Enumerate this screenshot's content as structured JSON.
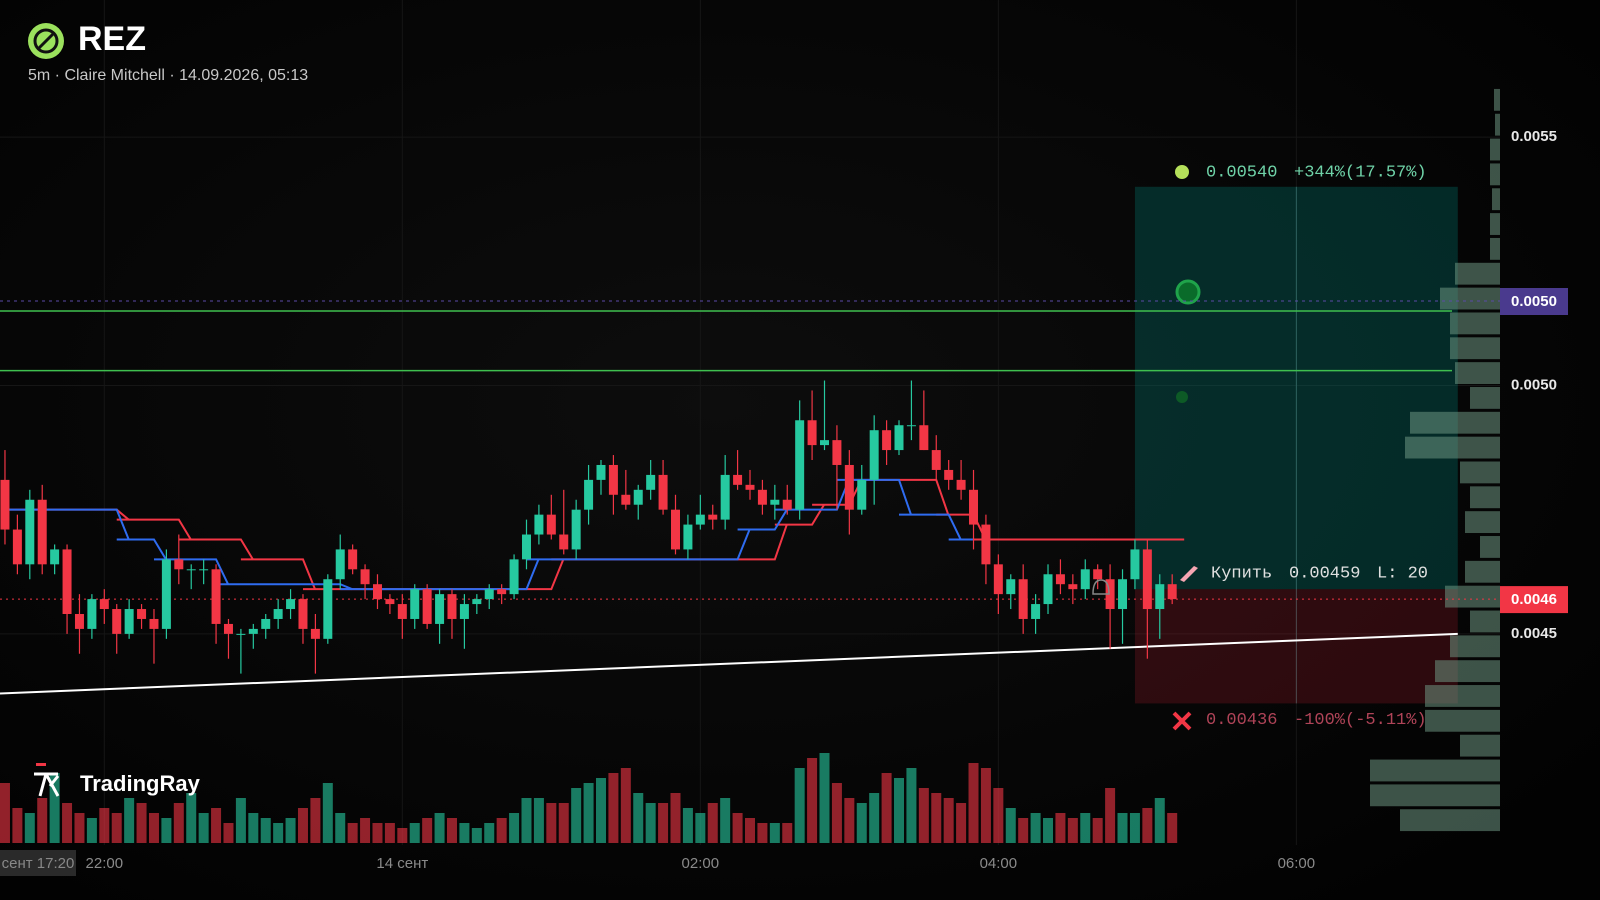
{
  "chart_data": {
    "type": "candlestick",
    "title": "REZ",
    "subtitle": "5m · Claire Mitchell · 14.09.2026, 05:13",
    "watermark": "TradingRay",
    "cursor_time_label": "сент 17:20",
    "up_color": "#26c9a0",
    "down_color": "#f23645",
    "grid": true,
    "xlim": [
      "21:18",
      "07:22"
    ],
    "ylim": [
      0.004075,
      0.005776
    ],
    "xticks": [
      {
        "value": "22:00",
        "label": "22:00"
      },
      {
        "value": "00:00",
        "label": "14 сент"
      },
      {
        "value": "02:00",
        "label": "02:00"
      },
      {
        "value": "04:00",
        "label": "04:00"
      },
      {
        "value": "06:00",
        "label": "06:00"
      }
    ],
    "yticks": [
      {
        "value": 0.0055,
        "label": "0.0055"
      },
      {
        "value": 0.005,
        "label": "0.0050"
      },
      {
        "value": 0.0045,
        "label": "0.0045"
      }
    ],
    "alert_label": "0.0050",
    "last_price": {
      "value": 0.00457,
      "label": "0.0046"
    },
    "x": [
      "21:20",
      "21:25",
      "21:30",
      "21:35",
      "21:40",
      "21:45",
      "21:50",
      "21:55",
      "22:00",
      "22:05",
      "22:10",
      "22:15",
      "22:20",
      "22:25",
      "22:30",
      "22:35",
      "22:40",
      "22:45",
      "22:50",
      "22:55",
      "23:00",
      "23:05",
      "23:10",
      "23:15",
      "23:20",
      "23:25",
      "23:30",
      "23:35",
      "23:40",
      "23:45",
      "23:50",
      "23:55",
      "00:00",
      "00:05",
      "00:10",
      "00:15",
      "00:20",
      "00:25",
      "00:30",
      "00:35",
      "00:40",
      "00:45",
      "00:50",
      "00:55",
      "01:00",
      "01:05",
      "01:10",
      "01:15",
      "01:20",
      "01:25",
      "01:30",
      "01:35",
      "01:40",
      "01:45",
      "01:50",
      "01:55",
      "02:00",
      "02:05",
      "02:10",
      "02:15",
      "02:20",
      "02:25",
      "02:30",
      "02:35",
      "02:40",
      "02:45",
      "02:50",
      "02:55",
      "03:00",
      "03:05",
      "03:10",
      "03:15",
      "03:20",
      "03:25",
      "03:30",
      "03:35",
      "03:40",
      "03:45",
      "03:50",
      "03:55",
      "04:00",
      "04:05",
      "04:10",
      "04:15",
      "04:20",
      "04:25",
      "04:30",
      "04:35",
      "04:40",
      "04:45",
      "04:50",
      "04:55",
      "05:00",
      "05:05",
      "05:10"
    ],
    "ohlc": [
      [
        0.00481,
        0.00487,
        0.00468,
        0.00471
      ],
      [
        0.00471,
        0.00474,
        0.00462,
        0.00464
      ],
      [
        0.00464,
        0.00479,
        0.00461,
        0.00477
      ],
      [
        0.00477,
        0.0048,
        0.00462,
        0.00464
      ],
      [
        0.00464,
        0.00468,
        0.00462,
        0.00467
      ],
      [
        0.00467,
        0.00468,
        0.0045,
        0.00454
      ],
      [
        0.00454,
        0.00458,
        0.00446,
        0.00451
      ],
      [
        0.00451,
        0.00458,
        0.00449,
        0.00457
      ],
      [
        0.00457,
        0.00459,
        0.00452,
        0.00455
      ],
      [
        0.00455,
        0.00456,
        0.00446,
        0.0045
      ],
      [
        0.0045,
        0.00457,
        0.00449,
        0.00455
      ],
      [
        0.00455,
        0.00456,
        0.00451,
        0.00453
      ],
      [
        0.00453,
        0.00455,
        0.00444,
        0.00451
      ],
      [
        0.00451,
        0.00467,
        0.00449,
        0.00465
      ],
      [
        0.00465,
        0.0047,
        0.0046,
        0.00463
      ],
      [
        0.00463,
        0.00464,
        0.00459,
        0.00463
      ],
      [
        0.00463,
        0.00465,
        0.0046,
        0.00463
      ],
      [
        0.00463,
        0.00464,
        0.00448,
        0.00452
      ],
      [
        0.00452,
        0.00453,
        0.00445,
        0.0045
      ],
      [
        0.0045,
        0.00451,
        0.00442,
        0.0045
      ],
      [
        0.0045,
        0.00452,
        0.00447,
        0.00451
      ],
      [
        0.00451,
        0.00454,
        0.00449,
        0.00453
      ],
      [
        0.00453,
        0.00457,
        0.00451,
        0.00455
      ],
      [
        0.00455,
        0.00459,
        0.00453,
        0.00457
      ],
      [
        0.00457,
        0.00458,
        0.00448,
        0.00451
      ],
      [
        0.00451,
        0.00454,
        0.00442,
        0.00449
      ],
      [
        0.00449,
        0.00462,
        0.00448,
        0.00461
      ],
      [
        0.00461,
        0.0047,
        0.00459,
        0.00467
      ],
      [
        0.00467,
        0.00468,
        0.00462,
        0.00463
      ],
      [
        0.00463,
        0.00464,
        0.00457,
        0.0046
      ],
      [
        0.0046,
        0.00462,
        0.00455,
        0.00457
      ],
      [
        0.00457,
        0.00458,
        0.00454,
        0.00456
      ],
      [
        0.00456,
        0.00458,
        0.00449,
        0.00453
      ],
      [
        0.00453,
        0.0046,
        0.00451,
        0.00459
      ],
      [
        0.00459,
        0.0046,
        0.00451,
        0.00452
      ],
      [
        0.00452,
        0.00459,
        0.00448,
        0.00458
      ],
      [
        0.00458,
        0.00459,
        0.00449,
        0.00453
      ],
      [
        0.00453,
        0.00458,
        0.00447,
        0.00456
      ],
      [
        0.00456,
        0.00458,
        0.00454,
        0.00457
      ],
      [
        0.00457,
        0.0046,
        0.00455,
        0.00459
      ],
      [
        0.00459,
        0.0046,
        0.00456,
        0.00458
      ],
      [
        0.00458,
        0.00466,
        0.00457,
        0.00465
      ],
      [
        0.00465,
        0.00473,
        0.00463,
        0.0047
      ],
      [
        0.0047,
        0.00476,
        0.00468,
        0.00474
      ],
      [
        0.00474,
        0.00478,
        0.00469,
        0.0047
      ],
      [
        0.0047,
        0.00479,
        0.00466,
        0.00467
      ],
      [
        0.00467,
        0.00477,
        0.00465,
        0.00475
      ],
      [
        0.00475,
        0.00484,
        0.00472,
        0.00481
      ],
      [
        0.00481,
        0.00485,
        0.00478,
        0.00484
      ],
      [
        0.00484,
        0.00486,
        0.00474,
        0.00478
      ],
      [
        0.00478,
        0.00483,
        0.00475,
        0.00476
      ],
      [
        0.00476,
        0.0048,
        0.00473,
        0.00479
      ],
      [
        0.00479,
        0.00485,
        0.00477,
        0.00482
      ],
      [
        0.00482,
        0.00485,
        0.00474,
        0.00475
      ],
      [
        0.00475,
        0.00478,
        0.00466,
        0.00467
      ],
      [
        0.00467,
        0.00474,
        0.00465,
        0.00472
      ],
      [
        0.00472,
        0.00478,
        0.00471,
        0.00474
      ],
      [
        0.00474,
        0.00476,
        0.00471,
        0.00473
      ],
      [
        0.00473,
        0.00486,
        0.00471,
        0.00482
      ],
      [
        0.00482,
        0.00487,
        0.00479,
        0.0048
      ],
      [
        0.0048,
        0.00483,
        0.00477,
        0.00479
      ],
      [
        0.00479,
        0.00481,
        0.00474,
        0.00476
      ],
      [
        0.00476,
        0.0048,
        0.00473,
        0.00477
      ],
      [
        0.00477,
        0.0048,
        0.00474,
        0.00475
      ],
      [
        0.00475,
        0.00497,
        0.00473,
        0.00493
      ],
      [
        0.00493,
        0.00499,
        0.00485,
        0.00488
      ],
      [
        0.00488,
        0.00501,
        0.00487,
        0.00489
      ],
      [
        0.00489,
        0.00492,
        0.00475,
        0.00484
      ],
      [
        0.00484,
        0.00487,
        0.0047,
        0.00475
      ],
      [
        0.00475,
        0.00484,
        0.00474,
        0.00481
      ],
      [
        0.00481,
        0.00494,
        0.00476,
        0.00491
      ],
      [
        0.00491,
        0.00493,
        0.00484,
        0.00487
      ],
      [
        0.00487,
        0.00493,
        0.00486,
        0.00492
      ],
      [
        0.00492,
        0.00501,
        0.00489,
        0.00492
      ],
      [
        0.00492,
        0.00499,
        0.00487,
        0.00487
      ],
      [
        0.00487,
        0.0049,
        0.00481,
        0.00483
      ],
      [
        0.00483,
        0.00485,
        0.00479,
        0.00481
      ],
      [
        0.00481,
        0.00485,
        0.00477,
        0.00479
      ],
      [
        0.00479,
        0.00483,
        0.00467,
        0.00472
      ],
      [
        0.00472,
        0.00474,
        0.0046,
        0.00464
      ],
      [
        0.00464,
        0.00466,
        0.00454,
        0.00458
      ],
      [
        0.00458,
        0.00462,
        0.00455,
        0.00461
      ],
      [
        0.00461,
        0.00464,
        0.0045,
        0.00453
      ],
      [
        0.00453,
        0.00458,
        0.0045,
        0.00456
      ],
      [
        0.00456,
        0.00464,
        0.00454,
        0.00462
      ],
      [
        0.00462,
        0.00465,
        0.00458,
        0.0046
      ],
      [
        0.0046,
        0.00462,
        0.00456,
        0.00459
      ],
      [
        0.00459,
        0.00465,
        0.00457,
        0.00463
      ],
      [
        0.00463,
        0.00464,
        0.00459,
        0.00461
      ],
      [
        0.00461,
        0.00464,
        0.00447,
        0.00455
      ],
      [
        0.00455,
        0.00463,
        0.00448,
        0.00461
      ],
      [
        0.00461,
        0.00469,
        0.00459,
        0.00467
      ],
      [
        0.00467,
        0.00469,
        0.00445,
        0.00455
      ],
      [
        0.00455,
        0.00462,
        0.00449,
        0.0046
      ],
      [
        0.0046,
        0.00462,
        0.00456,
        0.00457
      ]
    ],
    "volume": [
      60,
      35,
      30,
      45,
      70,
      40,
      30,
      25,
      35,
      30,
      45,
      40,
      30,
      25,
      40,
      50,
      30,
      35,
      20,
      45,
      30,
      25,
      20,
      25,
      35,
      45,
      60,
      30,
      20,
      25,
      20,
      20,
      15,
      20,
      25,
      30,
      25,
      20,
      15,
      20,
      25,
      30,
      45,
      45,
      40,
      40,
      55,
      60,
      65,
      70,
      75,
      50,
      40,
      40,
      50,
      35,
      30,
      40,
      45,
      30,
      25,
      20,
      20,
      20,
      75,
      85,
      90,
      60,
      45,
      40,
      50,
      70,
      65,
      75,
      55,
      50,
      45,
      40,
      80,
      75,
      55,
      35,
      25,
      30,
      25,
      30,
      25,
      30,
      25,
      55,
      30,
      30,
      35,
      45,
      30
    ],
    "lines": [
      {
        "color": "#f23645",
        "x": [
          "21:20",
          "22:05",
          "22:30",
          "22:55",
          "23:20",
          "01:00",
          "02:30",
          "02:45",
          "03:00",
          "03:35",
          "03:50",
          "05:10"
        ],
        "values": [
          0.00475,
          0.00473,
          0.00469,
          0.00465,
          0.00459,
          0.00465,
          0.00472,
          0.00476,
          0.00481,
          0.00474,
          0.00469,
          0.00469
        ]
      },
      {
        "color": "#2f6cf0",
        "x": [
          "21:20",
          "22:05",
          "22:20",
          "22:45",
          "23:35",
          "00:50",
          "02:15",
          "02:30",
          "02:55",
          "03:20",
          "03:40",
          "03:45"
        ],
        "values": [
          0.00475,
          0.00469,
          0.00465,
          0.0046,
          0.00459,
          0.00465,
          0.00471,
          0.00475,
          0.00481,
          0.00474,
          0.00469,
          0.00469
        ]
      }
    ],
    "levels": [
      0.00515,
      0.00503
    ],
    "trendline": {
      "x": [
        "21:18",
        "07:05"
      ],
      "values": [
        0.00438,
        0.0045
      ]
    },
    "profile": {
      "bins": [
        0.0041,
        0.00415,
        0.0042,
        0.00425,
        0.0043,
        0.00435,
        0.0044,
        0.00445,
        0.0045,
        0.00455,
        0.0046,
        0.00465,
        0.0047,
        0.00475,
        0.0048,
        0.00485,
        0.0049,
        0.00495,
        0.005,
        0.00505,
        0.0051,
        0.00515,
        0.0052,
        0.00525,
        0.0053,
        0.00535,
        0.0054,
        0.00545,
        0.0055,
        0.00555,
        0.0056
      ],
      "counts": [
        100,
        130,
        130,
        40,
        75,
        75,
        65,
        50,
        30,
        55,
        35,
        20,
        35,
        30,
        40,
        95,
        90,
        30,
        45,
        50,
        50,
        60,
        45,
        10,
        10,
        8,
        10,
        10,
        5,
        6
      ]
    },
    "position": {
      "x": [
        "04:55",
        "07:05"
      ],
      "target": {
        "value": 0.0054,
        "label": "0.00540"
      },
      "target_change": "+344%(17.57%)",
      "entry": 0.00459,
      "entry_text": "Купить",
      "leverage": "L: 20",
      "stop": 0.00436,
      "stop_change": "-100%(-5.11%)"
    }
  }
}
